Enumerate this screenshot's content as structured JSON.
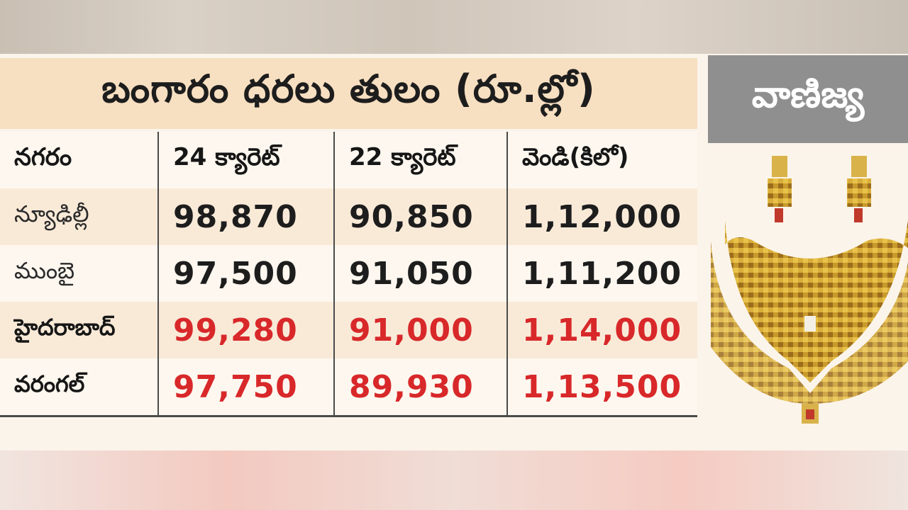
{
  "title": "బంగారం ధరలు తులం (రూ.ల్లో)",
  "section": "వాణిజ్య",
  "table": {
    "headers": [
      "నగరం",
      "24 క్యారెట్",
      "22 క్యారెట్",
      "వెండి(కిలో)"
    ],
    "rows": [
      {
        "city": "న్యూఢిల్లీ",
        "k24": "98,870",
        "k22": "90,850",
        "silver": "1,12,000"
      },
      {
        "city": "ముంబై",
        "k24": "97,500",
        "k22": "91,050",
        "silver": "1,11,200"
      },
      {
        "city": "హైదరాబాద్",
        "k24": "99,280",
        "k22": "91,000",
        "silver": "1,14,000"
      },
      {
        "city": "వరంగల్",
        "k24": "97,750",
        "k22": "89,930",
        "silver": "1,13,500"
      }
    ]
  },
  "colors": {
    "title_band": "#f7dfc1",
    "highlight_red": "#d8282a",
    "section_tag_bg": "#8f8f8f"
  },
  "image": {
    "icon": "gold-jewellery-icon"
  }
}
